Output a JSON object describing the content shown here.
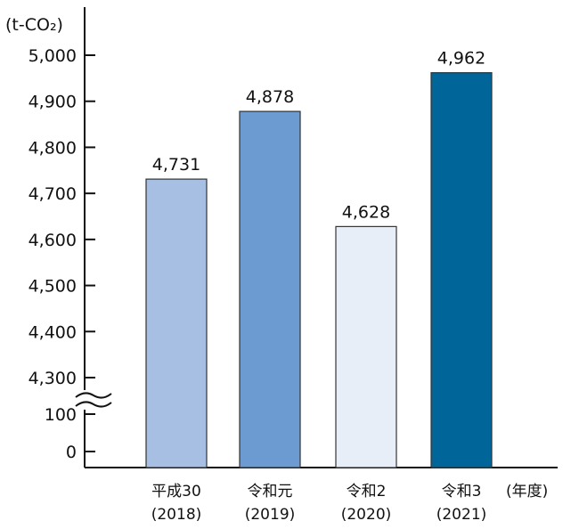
{
  "chart_data": {
    "type": "bar",
    "title": "",
    "ylabel": "(t-CO₂)",
    "xlabel": "(年度)",
    "axis_break": true,
    "grid": false,
    "y_ticks_upper": [
      "4,300",
      "4,400",
      "4,500",
      "4,600",
      "4,700",
      "4,800",
      "4,900",
      "5,000"
    ],
    "y_ticks_lower": [
      "0",
      "100"
    ],
    "ylim": [
      4300,
      5000
    ],
    "categories": [
      {
        "name": "平成30",
        "year": "(2018)"
      },
      {
        "name": "令和元",
        "year": "(2019)"
      },
      {
        "name": "令和2",
        "year": "(2020)"
      },
      {
        "name": "令和3",
        "year": "(2021)"
      }
    ],
    "values": [
      4731,
      4878,
      4628,
      4962
    ],
    "value_labels": [
      "4,731",
      "4,878",
      "4,628",
      "4,962"
    ],
    "colors": [
      "#a7bfe3",
      "#6c9bd2",
      "#e8eef8",
      "#006699"
    ],
    "bar_stroke": "#333333"
  }
}
